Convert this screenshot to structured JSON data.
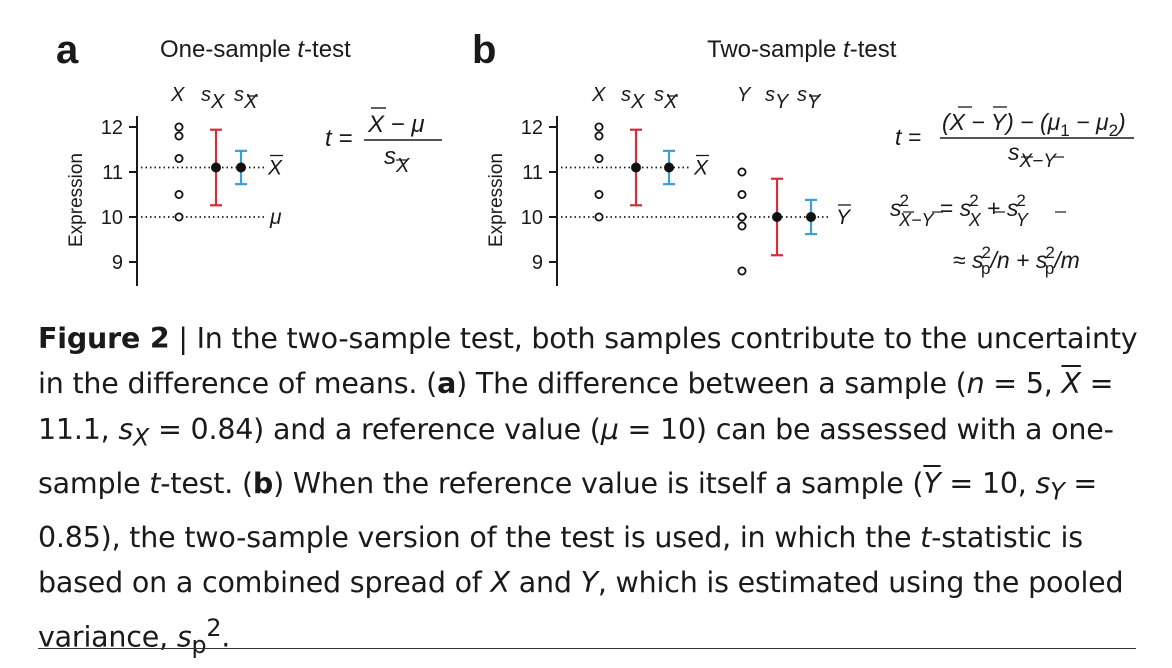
{
  "figure": {
    "panel_a": {
      "letter": "a",
      "title_pre": "One-sample ",
      "title_italic": "t",
      "title_post": "-test",
      "ylabel": "Expression",
      "yticks": [
        "12",
        "11",
        "10",
        "9"
      ],
      "col_labels": [
        "X",
        "s",
        "X",
        "s",
        "X"
      ],
      "line_label_mean": "X",
      "line_label_ref": "μ",
      "formula": {
        "lhs": "t =",
        "numerator": "X − μ",
        "denominator_s": "s",
        "denominator_sub": "X"
      }
    },
    "panel_b": {
      "letter": "b",
      "title_pre": "Two-sample ",
      "title_italic": "t",
      "title_post": "-test",
      "ylabel": "Expression",
      "yticks": [
        "12",
        "11",
        "10",
        "9"
      ],
      "col_labels_x": [
        "X",
        "s",
        "X",
        "s",
        "X"
      ],
      "col_labels_y": [
        "Y",
        "s",
        "Y",
        "s",
        "Y"
      ],
      "line_label_mean_x": "X",
      "line_label_mean_y": "Y",
      "formula1": {
        "lhs": "t =",
        "numerator": "(X − Y) − (μ1 − μ2)",
        "denominator": "sX−Y"
      },
      "formula2": "s²X−Y = s²X + s²Y",
      "formula3": "≈ s²p/n + s²p/m"
    }
  },
  "chart_data": [
    {
      "type": "scatter",
      "title": "One-sample t-test",
      "ylabel": "Expression",
      "ylim": [
        8.7,
        12.3
      ],
      "yticks": [
        9,
        10,
        11,
        12
      ],
      "series": [
        {
          "name": "X",
          "values": [
            12.0,
            11.8,
            11.3,
            10.5,
            10.0
          ]
        }
      ],
      "mean_x": 11.1,
      "s_x": 0.84,
      "s_xbar": 0.37,
      "reference_mu": 10
    },
    {
      "type": "scatter",
      "title": "Two-sample t-test",
      "ylabel": "Expression",
      "ylim": [
        8.7,
        12.3
      ],
      "yticks": [
        9,
        10,
        11,
        12
      ],
      "series": [
        {
          "name": "X",
          "values": [
            12.0,
            11.8,
            11.3,
            10.5,
            10.0
          ]
        },
        {
          "name": "Y",
          "values": [
            11.0,
            10.5,
            10.0,
            9.8,
            8.8
          ]
        }
      ],
      "mean_x": 11.1,
      "s_x": 0.84,
      "s_xbar": 0.37,
      "mean_y": 10.0,
      "s_y": 0.85,
      "s_ybar": 0.38
    }
  ],
  "colors": {
    "sd_bar": "#d32f3a",
    "se_bar": "#3a9fd6",
    "points": "#111111"
  },
  "caption": {
    "label": "Figure 2",
    "sep": " | ",
    "p1": "In the two-sample test, both samples contribute to the uncertainty in the difference of means. (",
    "a": "a",
    "p2": ") The difference between a sample (",
    "n": "n",
    "p3": " = 5, ",
    "xbar": "X",
    "p4": " = 11.1, ",
    "s1": "s",
    "s1sub": "X",
    "p5": " = 0.84) and a reference value (",
    "mu": "μ",
    "p6": " = 10) can be assessed with a one-sample ",
    "t1": "t",
    "p7": "-test. (",
    "b": "b",
    "p8": ") When the reference value is itself a sample (",
    "ybar": "Y",
    "p9": " = 10, ",
    "s2": "s",
    "s2sub": "Y",
    "p10": " = 0.85), the two-sample version of the test is used, in which the ",
    "t2": "t",
    "p11": "-statistic is based on a combined spread of ",
    "X": "X",
    "p12": " and ",
    "Y": "Y",
    "p13": ", which is estimated using the pooled variance, ",
    "sp": "s",
    "spsub": "p",
    "spsup": "2",
    "p14": "."
  }
}
